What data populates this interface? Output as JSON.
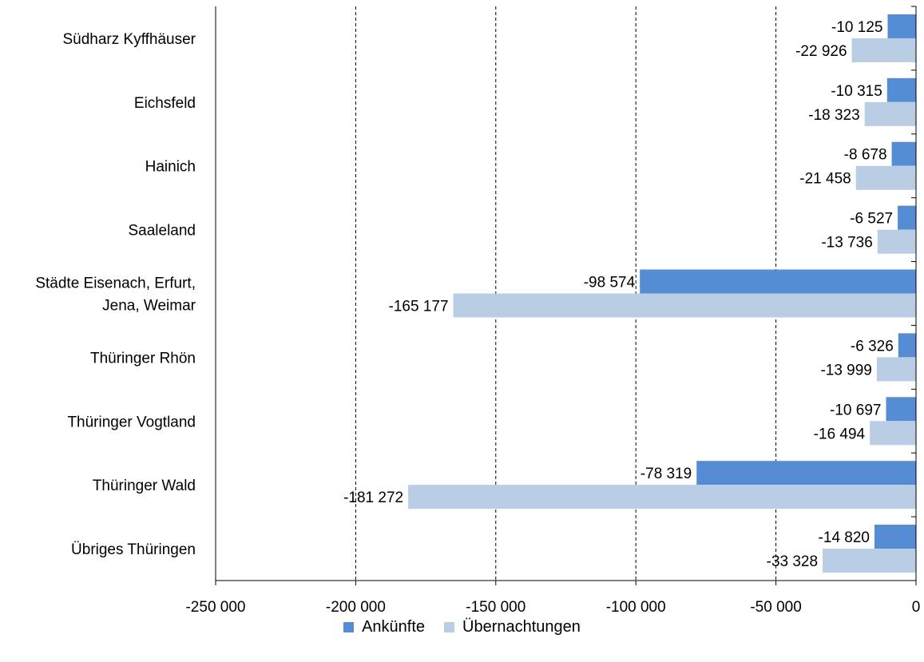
{
  "chart_data": {
    "type": "bar",
    "orientation": "horizontal",
    "categories": [
      "Südharz Kyffhäuser",
      "Eichsfeld",
      "Hainich",
      "Saaleland",
      "Städte Eisenach, Erfurt, Jena, Weimar",
      "Thüringer Rhön",
      "Thüringer Vogtland",
      "Thüringer Wald",
      "Übriges Thüringen"
    ],
    "category_lines": [
      [
        "Südharz Kyffhäuser"
      ],
      [
        "Eichsfeld"
      ],
      [
        "Hainich"
      ],
      [
        "Saaleland"
      ],
      [
        "Städte Eisenach, Erfurt,",
        "Jena, Weimar"
      ],
      [
        "Thüringer Rhön"
      ],
      [
        "Thüringer Vogtland"
      ],
      [
        "Thüringer Wald"
      ],
      [
        "Übriges Thüringen"
      ]
    ],
    "series": [
      {
        "name": "Ankünfte",
        "color": "#548dd4",
        "values": [
          -10125,
          -10315,
          -8678,
          -6527,
          -98574,
          -6326,
          -10697,
          -78319,
          -14820
        ],
        "labels": [
          "-10 125",
          "-10 315",
          "-8 678",
          "-6 527",
          "-98 574",
          "-6 326",
          "-10 697",
          "-78 319",
          "-14 820"
        ]
      },
      {
        "name": "Übernachtungen",
        "color": "#b9cde5",
        "values": [
          -22926,
          -18323,
          -21458,
          -13736,
          -165177,
          -13999,
          -16494,
          -181272,
          -33328
        ],
        "labels": [
          "-22 926",
          "-18 323",
          "-21 458",
          "-13 736",
          "-165 177",
          "-13 999",
          "-16 494",
          "-181 272",
          "-33 328"
        ]
      }
    ],
    "xlim": [
      -250000,
      0
    ],
    "xticks": [
      -250000,
      -200000,
      -150000,
      -100000,
      -50000,
      0
    ],
    "xtick_labels": [
      "-250 000",
      "-200 000",
      "-150 000",
      "-100 000",
      "-50 000",
      "0"
    ],
    "gridlines": "vertical dashed",
    "legend_position": "bottom"
  }
}
